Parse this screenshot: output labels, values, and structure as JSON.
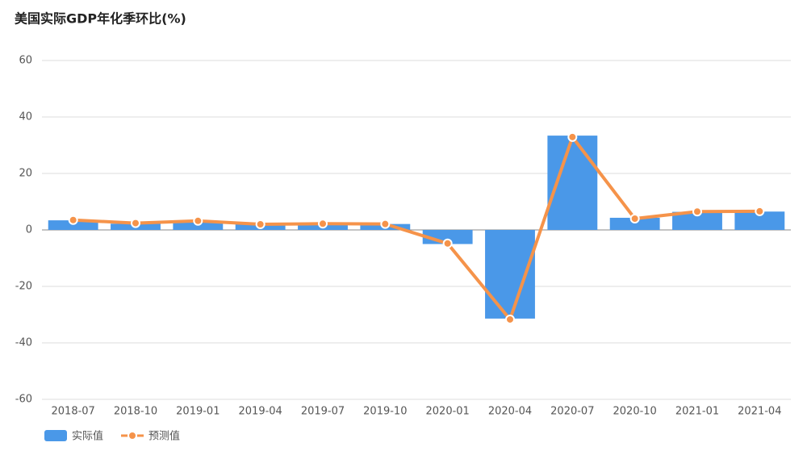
{
  "chart_data": {
    "type": "bar",
    "title": "美国实际GDP年化季环比(%)",
    "categories": [
      "2018-07",
      "2018-10",
      "2019-01",
      "2019-04",
      "2019-07",
      "2019-10",
      "2020-01",
      "2020-04",
      "2020-07",
      "2020-10",
      "2021-01",
      "2021-04"
    ],
    "series": [
      {
        "name": "实际值",
        "type": "bar",
        "color": "#4a98e8",
        "values": [
          3.4,
          2.2,
          3.1,
          2.0,
          2.1,
          2.1,
          -5.0,
          -31.4,
          33.4,
          4.3,
          6.4,
          6.5
        ]
      },
      {
        "name": "预测值",
        "type": "line",
        "color": "#f5934a",
        "values": [
          3.5,
          2.4,
          3.2,
          2.0,
          2.2,
          2.1,
          -4.8,
          -31.7,
          32.9,
          4.0,
          6.5,
          6.6
        ]
      }
    ],
    "ylim": [
      -60,
      60
    ],
    "yticks": [
      -60,
      -40,
      -20,
      0,
      20,
      40,
      60
    ],
    "grid": true
  }
}
